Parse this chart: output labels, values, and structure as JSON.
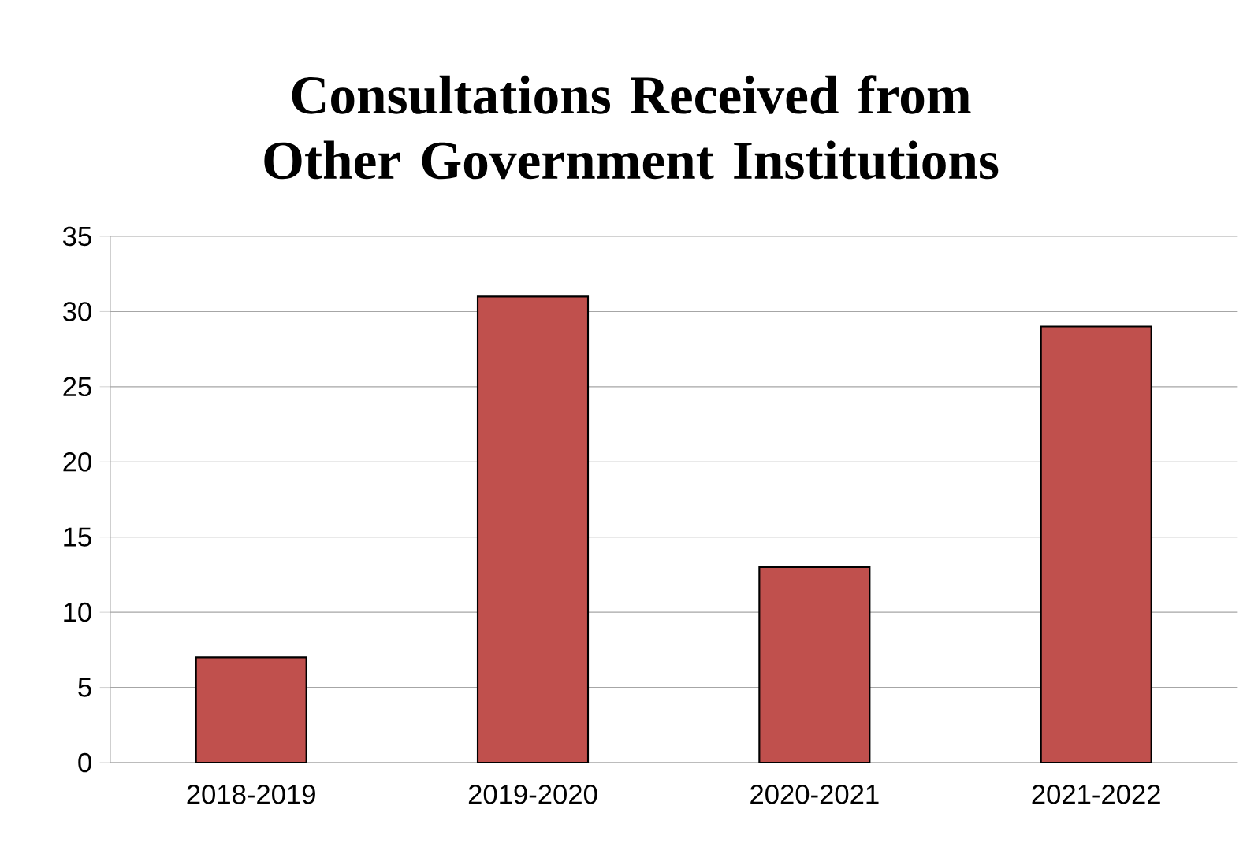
{
  "chart_data": {
    "type": "bar",
    "title": "Consultations Received from Other Government Institutions",
    "categories": [
      "2018-2019",
      "2019-2020",
      "2020-2021",
      "2021-2022"
    ],
    "values": [
      7,
      31,
      13,
      29
    ],
    "color": "#c0504d",
    "ylim": [
      0,
      35
    ],
    "yticks": [
      0,
      5,
      10,
      15,
      20,
      25,
      30,
      35
    ],
    "grid": "y"
  }
}
